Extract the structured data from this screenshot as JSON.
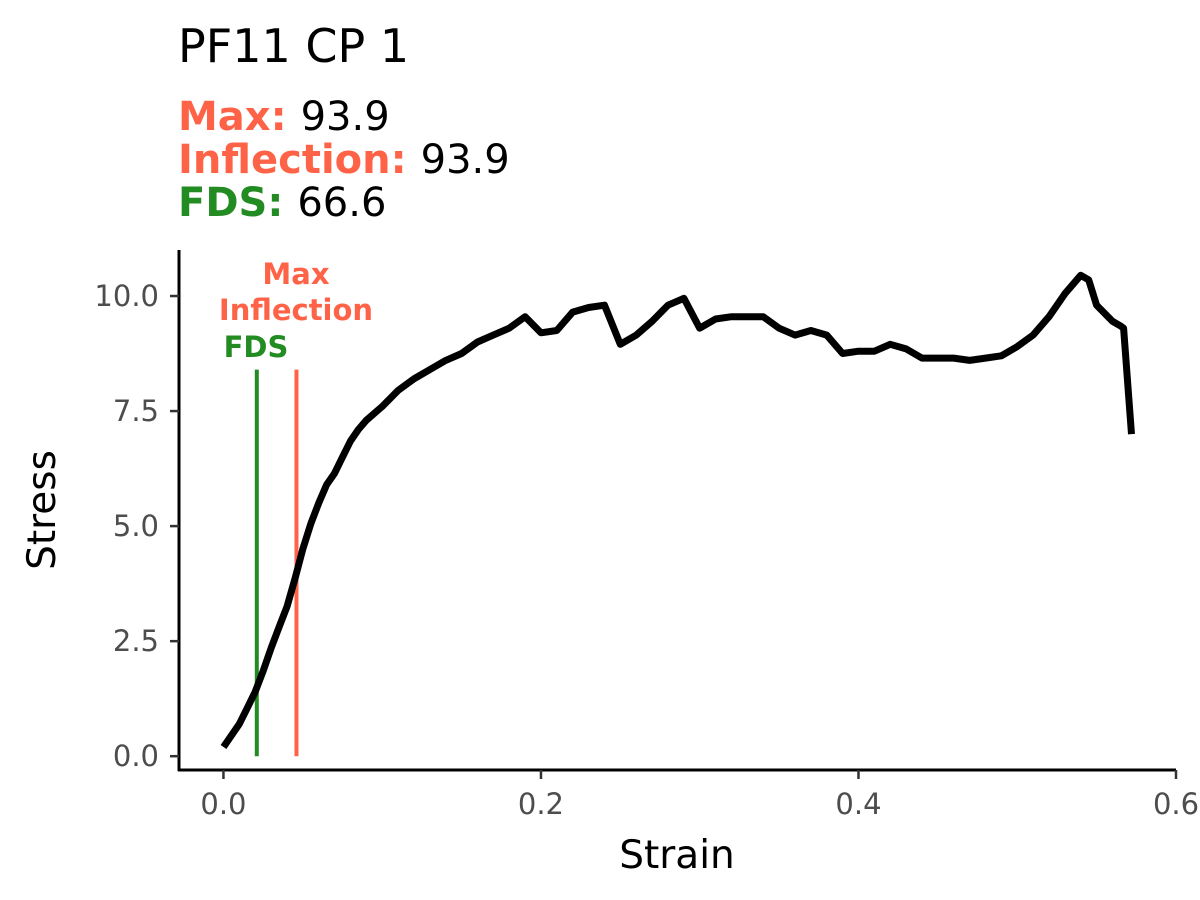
{
  "chart_data": {
    "type": "line",
    "title": "PF11 CP 1",
    "subtitle": [
      {
        "label": "Max:",
        "value": "93.9",
        "color": "#FF6347"
      },
      {
        "label": "Inflection:",
        "value": "93.9",
        "color": "#FF6347"
      },
      {
        "label": "FDS:",
        "value": "66.6",
        "color": "#228B22"
      }
    ],
    "xlabel": "Strain",
    "ylabel": "Stress",
    "xlim": [
      -0.028,
      0.6
    ],
    "ylim": [
      -0.3,
      11.0
    ],
    "xticks": [
      0.0,
      0.2,
      0.4,
      0.6
    ],
    "xtick_labels": [
      "0.0",
      "0.2",
      "0.4",
      "0.6"
    ],
    "yticks": [
      0.0,
      2.5,
      5.0,
      7.5,
      10.0
    ],
    "ytick_labels": [
      "0.0",
      "2.5",
      "5.0",
      "7.5",
      "10.0"
    ],
    "grid": false,
    "series": [
      {
        "color": "#000000",
        "x": [
          0.0,
          0.005,
          0.01,
          0.015,
          0.02,
          0.025,
          0.03,
          0.035,
          0.04,
          0.045,
          0.05,
          0.055,
          0.06,
          0.065,
          0.07,
          0.075,
          0.08,
          0.085,
          0.09,
          0.1,
          0.11,
          0.12,
          0.13,
          0.14,
          0.15,
          0.16,
          0.17,
          0.18,
          0.19,
          0.2,
          0.21,
          0.22,
          0.23,
          0.24,
          0.25,
          0.26,
          0.27,
          0.28,
          0.29,
          0.3,
          0.31,
          0.32,
          0.33,
          0.34,
          0.35,
          0.36,
          0.37,
          0.38,
          0.39,
          0.4,
          0.41,
          0.42,
          0.43,
          0.44,
          0.45,
          0.46,
          0.47,
          0.48,
          0.49,
          0.5,
          0.51,
          0.52,
          0.53,
          0.54,
          0.545,
          0.55,
          0.56,
          0.565,
          0.567,
          0.57,
          0.572
        ],
        "y": [
          0.2,
          0.45,
          0.7,
          1.05,
          1.4,
          1.85,
          2.35,
          2.8,
          3.25,
          3.85,
          4.5,
          5.05,
          5.5,
          5.9,
          6.15,
          6.5,
          6.85,
          7.1,
          7.3,
          7.6,
          7.95,
          8.2,
          8.4,
          8.6,
          8.75,
          9.0,
          9.15,
          9.3,
          9.55,
          9.2,
          9.25,
          9.65,
          9.75,
          9.8,
          8.95,
          9.15,
          9.45,
          9.8,
          9.95,
          9.3,
          9.5,
          9.55,
          9.55,
          9.55,
          9.3,
          9.15,
          9.25,
          9.15,
          8.75,
          8.8,
          8.8,
          8.95,
          8.85,
          8.65,
          8.65,
          8.65,
          8.6,
          8.65,
          8.7,
          8.9,
          9.15,
          9.55,
          10.05,
          10.45,
          10.35,
          9.8,
          9.45,
          9.35,
          9.3,
          7.9,
          7.0
        ]
      }
    ],
    "markers": [
      {
        "name": "FDS",
        "x": 0.021,
        "color": "#228B22",
        "y_top": 8.4
      },
      {
        "name": "Max / Inflection",
        "x": 0.046,
        "color": "#FF6347",
        "y_top": 8.4
      }
    ],
    "marker_labels": {
      "max": "Max",
      "inflection": "Inflection",
      "fds": "FDS"
    }
  }
}
